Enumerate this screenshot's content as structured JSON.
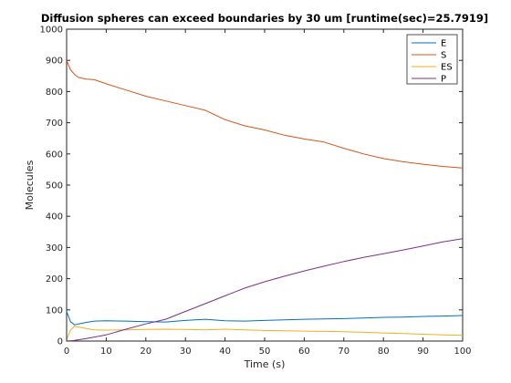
{
  "chart_data": {
    "type": "line",
    "title": "Diffusion spheres can exceed boundaries by 30 um [runtime(sec)=25.7919]",
    "xlabel": "Time (s)",
    "ylabel": "Molecules",
    "xlim": [
      0,
      100
    ],
    "ylim": [
      0,
      1000
    ],
    "xticks": [
      0,
      10,
      20,
      30,
      40,
      50,
      60,
      70,
      80,
      90,
      100
    ],
    "yticks": [
      0,
      100,
      200,
      300,
      400,
      500,
      600,
      700,
      800,
      900,
      1000
    ],
    "grid": false,
    "legend_position": "top-right",
    "x": [
      0,
      1,
      2,
      3,
      5,
      7,
      10,
      15,
      20,
      25,
      30,
      35,
      40,
      45,
      50,
      55,
      60,
      65,
      70,
      75,
      80,
      85,
      90,
      95,
      100
    ],
    "series": [
      {
        "name": "E",
        "color": "#0072BD",
        "values": [
          95,
          62,
          52,
          55,
          60,
          64,
          65,
          64,
          62,
          61,
          66,
          70,
          65,
          64,
          66,
          68,
          70,
          71,
          72,
          74,
          76,
          77,
          79,
          80,
          82
        ]
      },
      {
        "name": "S",
        "color": "#D95319",
        "values": [
          900,
          870,
          855,
          845,
          840,
          838,
          825,
          805,
          785,
          770,
          755,
          740,
          710,
          690,
          677,
          660,
          648,
          638,
          618,
          600,
          585,
          575,
          567,
          560,
          555
        ]
      },
      {
        "name": "ES",
        "color": "#EDB120",
        "values": [
          5,
          35,
          48,
          45,
          40,
          36,
          35,
          36,
          37,
          38,
          37,
          36,
          38,
          36,
          34,
          33,
          32,
          31,
          30,
          28,
          26,
          24,
          22,
          20,
          18
        ]
      },
      {
        "name": "P",
        "color": "#7E2F8E",
        "values": [
          0,
          1,
          2,
          4,
          8,
          13,
          20,
          38,
          55,
          70,
          95,
          120,
          145,
          170,
          190,
          208,
          225,
          240,
          255,
          268,
          280,
          292,
          305,
          318,
          328
        ]
      }
    ]
  }
}
